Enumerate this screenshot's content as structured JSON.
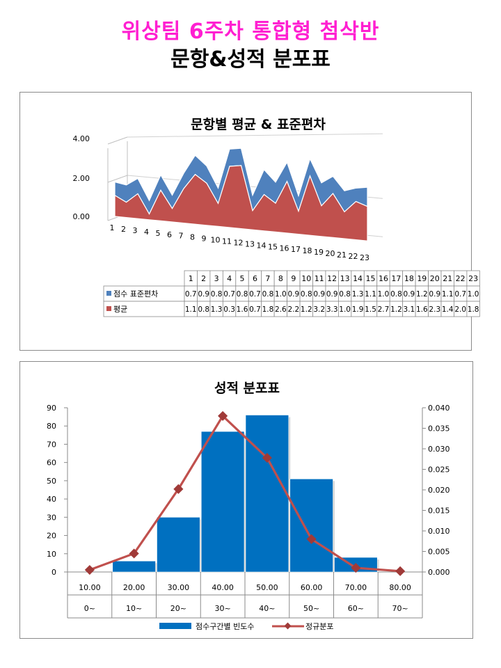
{
  "page": {
    "title_line1": "위상팀 6주차 통합형 첨삭반",
    "title_line2": "문항&성적 분포표"
  },
  "chart_data": [
    {
      "type": "area",
      "title": "문항별 평균 & 표준편차",
      "categories": [
        "1",
        "2",
        "3",
        "4",
        "5",
        "6",
        "7",
        "8",
        "9",
        "10",
        "11",
        "12",
        "13",
        "14",
        "15",
        "16",
        "17",
        "18",
        "19",
        "20",
        "21",
        "22",
        "23"
      ],
      "yticks": [
        "0.00",
        "2.00",
        "4.00"
      ],
      "ylim": [
        0,
        4
      ],
      "stacked": true,
      "series": [
        {
          "name": "점수 표준편차",
          "color": "#4f81bd",
          "values": [
            0.7,
            0.9,
            0.8,
            0.7,
            0.8,
            0.7,
            0.8,
            1.0,
            0.9,
            0.8,
            0.9,
            0.9,
            0.8,
            1.3,
            1.1,
            1.0,
            0.8,
            0.9,
            1.2,
            0.9,
            1.1,
            0.7,
            1.0
          ]
        },
        {
          "name": "평균",
          "color": "#c0504d",
          "values": [
            1.1,
            0.8,
            1.3,
            0.3,
            1.6,
            0.7,
            1.8,
            2.6,
            2.2,
            1.2,
            3.2,
            3.3,
            1.0,
            1.9,
            1.5,
            2.7,
            1.2,
            3.1,
            1.6,
            2.3,
            1.4,
            2.0,
            1.8
          ]
        }
      ],
      "data_table": true
    },
    {
      "type": "bar",
      "title": "성적 분포표",
      "categories": [
        "10.00",
        "20.00",
        "30.00",
        "40.00",
        "50.00",
        "60.00",
        "70.00",
        "80.00"
      ],
      "subcategories": [
        "0~",
        "10~",
        "20~",
        "30~",
        "40~",
        "50~",
        "60~",
        "70~"
      ],
      "ylim": [
        0,
        90
      ],
      "yticks": [
        "0",
        "10",
        "20",
        "30",
        "40",
        "50",
        "60",
        "70",
        "80",
        "90"
      ],
      "y2lim": [
        0,
        0.04
      ],
      "y2ticks": [
        "0.000",
        "0.005",
        "0.010",
        "0.015",
        "0.020",
        "0.025",
        "0.030",
        "0.035",
        "0.040"
      ],
      "legend_position": "bottom",
      "series": [
        {
          "name": "점수구간별 빈도수",
          "type": "bar",
          "axis": "left",
          "color": "#0070c0",
          "values": [
            0,
            6,
            30,
            77,
            86,
            51,
            8,
            0
          ]
        },
        {
          "name": "정규분포",
          "type": "line",
          "axis": "right",
          "color": "#c0504d",
          "values": [
            0.0005,
            0.0045,
            0.0202,
            0.038,
            0.0278,
            0.008,
            0.001,
            0.0002
          ]
        }
      ]
    }
  ]
}
